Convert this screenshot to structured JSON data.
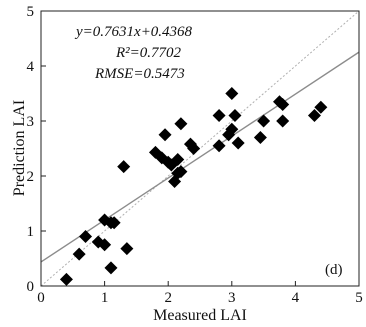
{
  "chart_data": {
    "type": "scatter",
    "title": "",
    "xlabel": "Measured LAI",
    "ylabel": "Prediction LAI",
    "xlim": [
      0,
      5
    ],
    "ylim": [
      0,
      5
    ],
    "xticks": [
      0,
      1,
      2,
      3,
      4,
      5
    ],
    "yticks": [
      0,
      1,
      2,
      3,
      4,
      5
    ],
    "xtick_labels": [
      "0",
      "1",
      "2",
      "3",
      "4",
      "5"
    ],
    "ytick_labels": [
      "0",
      "1",
      "2",
      "3",
      "4",
      "5"
    ],
    "grid": false,
    "panel_label": "(d)",
    "annotation": {
      "equation": "y=0.7631x+0.4368",
      "r2": "R²=0.7702",
      "rmse": "RMSE=0.5473"
    },
    "fit_line": {
      "slope": 0.7631,
      "intercept": 0.4368,
      "color": "#8c8c8c"
    },
    "reference_line": {
      "slope": 1,
      "intercept": 0,
      "style": "dotted",
      "color": "#b0b0b0"
    },
    "marker": {
      "shape": "diamond",
      "color": "#000000"
    },
    "points": {
      "x": [
        0.4,
        0.6,
        0.7,
        0.9,
        1.0,
        1.0,
        1.1,
        1.1,
        1.15,
        1.3,
        1.35,
        1.8,
        1.9,
        1.95,
        2.0,
        2.05,
        2.1,
        2.15,
        2.15,
        2.2,
        2.2,
        2.35,
        2.4,
        2.8,
        2.8,
        2.95,
        3.0,
        3.0,
        3.05,
        3.1,
        3.45,
        3.5,
        3.75,
        3.8,
        3.8,
        4.3,
        4.4
      ],
      "y": [
        0.12,
        0.58,
        0.9,
        0.8,
        0.75,
        1.2,
        0.33,
        1.15,
        1.15,
        2.17,
        0.68,
        2.43,
        2.33,
        2.75,
        2.25,
        2.2,
        1.9,
        2.05,
        2.3,
        2.95,
        2.08,
        2.58,
        2.5,
        2.55,
        3.1,
        2.75,
        2.85,
        3.5,
        3.1,
        2.6,
        2.7,
        3.0,
        3.35,
        3.0,
        3.3,
        3.1,
        3.25
      ]
    }
  }
}
